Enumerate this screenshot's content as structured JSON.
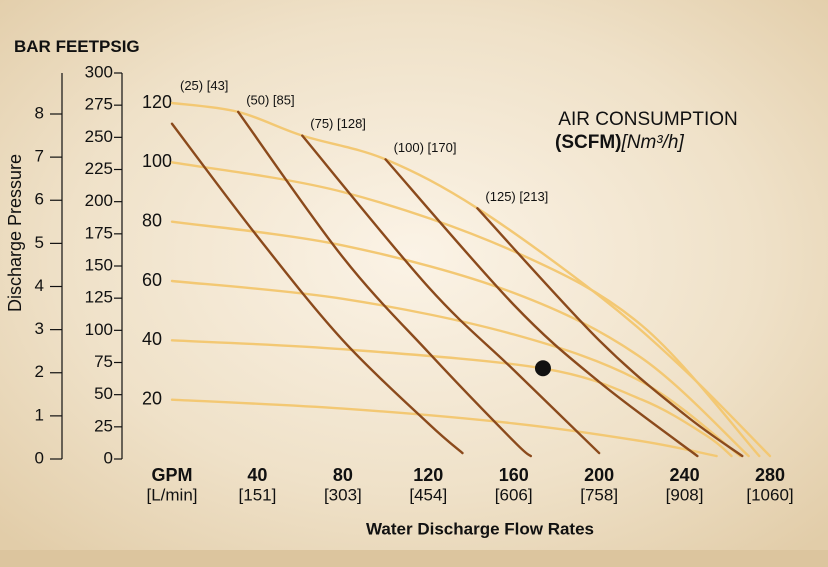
{
  "chart_data": {
    "type": "line",
    "axis_headers": [
      "BAR",
      "FEET",
      "PSIG"
    ],
    "ylabel": "Discharge Pressure",
    "xlabel": "Water Discharge Flow Rates",
    "legend_title": "AIR CONSUMPTION",
    "legend_units": [
      "(SCFM)",
      "[Nm³/h]"
    ],
    "xlim": [
      0,
      280
    ],
    "xticks": [
      {
        "value": 0,
        "label": "GPM"
      },
      40,
      80,
      120,
      160,
      200,
      240,
      280
    ],
    "xticks_secondary": [
      "[L/min]",
      "[151]",
      "[303]",
      "[454]",
      "[606]",
      "[758]",
      "[908]",
      "[1060]"
    ],
    "ylim": [
      0,
      120
    ],
    "yticks": [
      20,
      40,
      60,
      80,
      100,
      120
    ],
    "y_feet": {
      "lim": [
        0,
        300
      ],
      "ticks": [
        0,
        25,
        50,
        75,
        100,
        125,
        150,
        175,
        200,
        225,
        250,
        275,
        300
      ]
    },
    "y_bar": {
      "lim": [
        0,
        8
      ],
      "ticks": [
        0,
        1,
        2,
        3,
        4,
        5,
        6,
        7,
        8
      ]
    },
    "series": [
      {
        "color": "#f3c873",
        "x": [
          0,
          31,
          61,
          100,
          143,
          200,
          240,
          280
        ],
        "y": [
          120,
          117,
          109,
          101,
          84.5,
          55,
          30,
          1
        ]
      },
      {
        "color": "#f3c873",
        "x": [
          0,
          80,
          160,
          220,
          275
        ],
        "y": [
          100,
          90,
          70,
          45,
          1
        ]
      },
      {
        "color": "#f3c873",
        "x": [
          0,
          80,
          160,
          220,
          270
        ],
        "y": [
          80,
          72,
          56,
          34,
          1
        ]
      },
      {
        "color": "#f3c873",
        "x": [
          0,
          80,
          160,
          220,
          266
        ],
        "y": [
          60,
          54,
          42,
          26,
          1
        ]
      },
      {
        "color": "#f3c873",
        "x": [
          0,
          80,
          174,
          220,
          250,
          262
        ],
        "y": [
          40,
          37,
          30.5,
          20,
          8,
          1
        ]
      },
      {
        "color": "#f3c873",
        "x": [
          0,
          80,
          160,
          220,
          255
        ],
        "y": [
          20,
          17,
          12,
          6,
          1
        ]
      },
      {
        "name": "(25) [43]",
        "color": "#8b4a1c",
        "x": [
          0,
          40,
          80,
          120,
          136
        ],
        "y": [
          113,
          75,
          40,
          12,
          2
        ]
      },
      {
        "name": "(50) [85]",
        "color": "#8b4a1c",
        "x": [
          31,
          80,
          120,
          160,
          168
        ],
        "y": [
          117,
          68,
          36,
          6,
          1
        ]
      },
      {
        "name": "(75) [128]",
        "color": "#8b4a1c",
        "x": [
          61,
          120,
          160,
          200
        ],
        "y": [
          109,
          58,
          30,
          2
        ]
      },
      {
        "name": "(100) [170]",
        "color": "#8b4a1c",
        "x": [
          100,
          160,
          200,
          246
        ],
        "y": [
          101,
          52,
          26,
          1
        ]
      },
      {
        "name": "(125) [213]",
        "color": "#8b4a1c",
        "x": [
          143,
          200,
          240,
          267
        ],
        "y": [
          84.5,
          40,
          15,
          1
        ]
      }
    ],
    "points": [
      {
        "x": 173.7,
        "y": 30.6,
        "color": "#111111"
      }
    ]
  }
}
